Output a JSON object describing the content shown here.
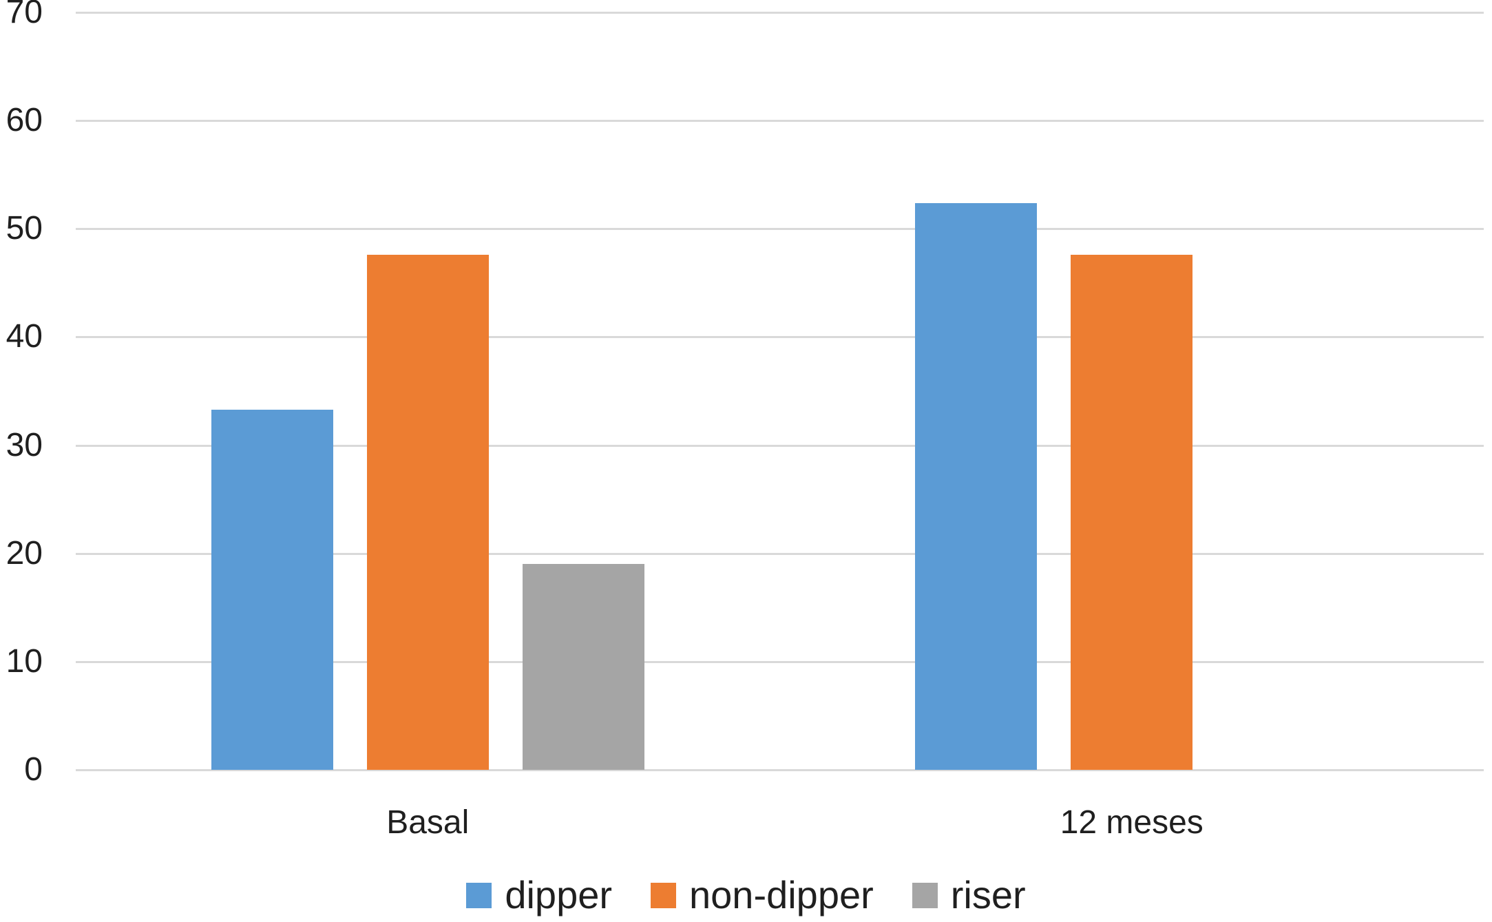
{
  "chart_data": {
    "type": "bar",
    "title": "",
    "xlabel": "",
    "ylabel": "",
    "categories": [
      "Basal",
      "12 meses"
    ],
    "series": [
      {
        "name": "dipper",
        "color": "#5B9BD5",
        "values": [
          33.3,
          52.4
        ]
      },
      {
        "name": "non-dipper",
        "color": "#ED7D31",
        "values": [
          47.6,
          47.6
        ]
      },
      {
        "name": "riser",
        "color": "#A5A5A5",
        "values": [
          19.0,
          0
        ]
      }
    ],
    "ylim": [
      0,
      70
    ],
    "y_ticks": [
      0,
      10,
      20,
      30,
      40,
      50,
      60,
      70
    ],
    "grid": true,
    "legend_position": "bottom",
    "colors": {
      "gridline": "#D9D9D9",
      "axis_text": "#1f1f1f",
      "background": "#FFFFFF"
    }
  }
}
